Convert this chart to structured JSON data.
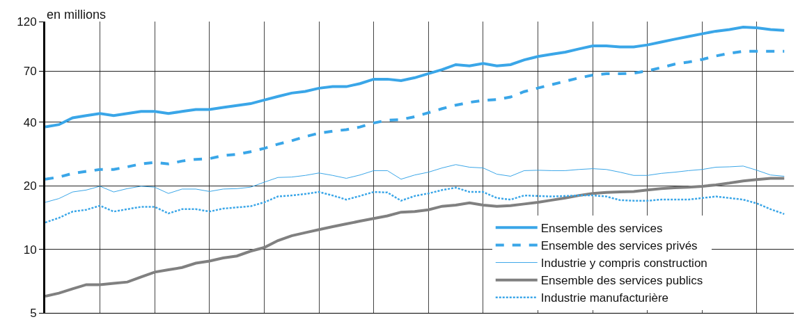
{
  "chart_data": {
    "type": "line",
    "ylabel": "en millions",
    "log": true,
    "ylim": [
      5,
      120
    ],
    "yticks": [
      5,
      10,
      20,
      40,
      70,
      120
    ],
    "grid": true,
    "legend": "bottom right",
    "marker": "none",
    "categories": [
      null,
      null,
      null,
      null,
      null,
      null,
      null,
      null,
      null,
      null,
      null,
      null,
      null,
      null,
      null,
      null,
      null,
      null,
      null,
      null,
      null,
      null,
      null,
      null,
      null,
      null,
      null,
      null,
      null,
      null,
      null,
      null,
      null,
      null,
      null,
      null,
      null,
      null,
      null,
      null,
      null,
      null,
      null,
      null,
      null,
      null,
      null,
      null,
      null,
      null,
      null,
      null,
      null,
      null,
      null
    ],
    "series": [
      {
        "name": "Ensemble des services",
        "color": "#3aa6e8",
        "line_style": "solid",
        "values": [
          38,
          39,
          42,
          43,
          44,
          43,
          44,
          45,
          45,
          44,
          45,
          46,
          46,
          47,
          48,
          49,
          51,
          53,
          55,
          56,
          58,
          59,
          59,
          61,
          64,
          64,
          63,
          65,
          68,
          71,
          75,
          74,
          76,
          74,
          75,
          79,
          82,
          84,
          86,
          89,
          92,
          92,
          91,
          91,
          93,
          96,
          99,
          102,
          105,
          108,
          110,
          113,
          112,
          110,
          109
        ]
      },
      {
        "name": "Ensemble des services privés",
        "color": "#3aa6e8",
        "line_style": "dashed",
        "values": [
          21.5,
          22.0,
          22.9,
          23.4,
          23.9,
          23.9,
          24.6,
          25.4,
          25.8,
          25.4,
          26.2,
          26.7,
          26.9,
          27.8,
          28.2,
          29.0,
          30.1,
          31.5,
          32.7,
          34.2,
          35.5,
          36.3,
          36.9,
          38.0,
          39.7,
          40.9,
          41.2,
          42.5,
          44.4,
          46.4,
          48.2,
          49.7,
          50.8,
          51.2,
          52.7,
          55.9,
          58.1,
          60.3,
          62.6,
          64.9,
          66.9,
          67.9,
          67.9,
          68.4,
          70,
          72.6,
          75.4,
          77.1,
          79.4,
          82.4,
          84.9,
          86.8,
          86.8,
          86.8,
          86.8
        ]
      },
      {
        "name": "Industrie y compris construction",
        "color": "#3aa6e8",
        "line_style": "solid",
        "values": [
          16.7,
          17.4,
          18.7,
          19.1,
          19.9,
          18.7,
          19.4,
          19.9,
          19.7,
          18.4,
          19.3,
          19.3,
          18.8,
          19.3,
          19.4,
          19.7,
          20.8,
          21.9,
          22.0,
          22.4,
          23.0,
          22.4,
          21.7,
          22.5,
          23.6,
          23.6,
          21.5,
          22.5,
          23.2,
          24.3,
          25.2,
          24.5,
          24.3,
          22.7,
          22.2,
          23.6,
          23.7,
          23.6,
          23.6,
          23.9,
          24.1,
          23.9,
          23.2,
          22.4,
          22.4,
          22.9,
          23.2,
          23.6,
          23.9,
          24.5,
          24.6,
          24.8,
          23.7,
          22.5,
          22.2
        ]
      },
      {
        "name": "Ensemble des services publics",
        "color": "#808080",
        "line_style": "solid",
        "values": [
          6.0,
          6.2,
          6.5,
          6.8,
          6.8,
          6.9,
          7.0,
          7.4,
          7.8,
          8.0,
          8.2,
          8.6,
          8.8,
          9.1,
          9.3,
          9.8,
          10.2,
          11.0,
          11.6,
          12.0,
          12.4,
          12.8,
          13.2,
          13.6,
          14.0,
          14.4,
          15.0,
          15.1,
          15.4,
          16.0,
          16.2,
          16.6,
          16.2,
          16.0,
          16.1,
          16.4,
          16.7,
          17.1,
          17.5,
          18.0,
          18.4,
          18.6,
          18.7,
          18.8,
          19.1,
          19.4,
          19.6,
          19.7,
          19.9,
          20.2,
          20.6,
          21.1,
          21.4,
          21.7,
          21.7
        ]
      },
      {
        "name": "Industrie manufacturière",
        "color": "#3aa6e8",
        "line_style": "dotted",
        "values": [
          13.4,
          14.1,
          15.1,
          15.4,
          16.1,
          15.1,
          15.5,
          15.9,
          15.9,
          14.8,
          15.5,
          15.5,
          15.1,
          15.6,
          15.8,
          16.0,
          16.7,
          17.8,
          18.0,
          18.3,
          18.7,
          18.0,
          17.2,
          17.9,
          18.7,
          18.6,
          17.0,
          17.9,
          18.4,
          19.1,
          19.6,
          18.7,
          18.7,
          17.5,
          17.2,
          18.0,
          17.9,
          17.8,
          17.9,
          18.0,
          18.0,
          17.8,
          17.1,
          17.0,
          17.0,
          17.2,
          17.2,
          17.2,
          17.5,
          17.8,
          17.5,
          17.2,
          16.5,
          15.5,
          14.7
        ]
      }
    ]
  }
}
